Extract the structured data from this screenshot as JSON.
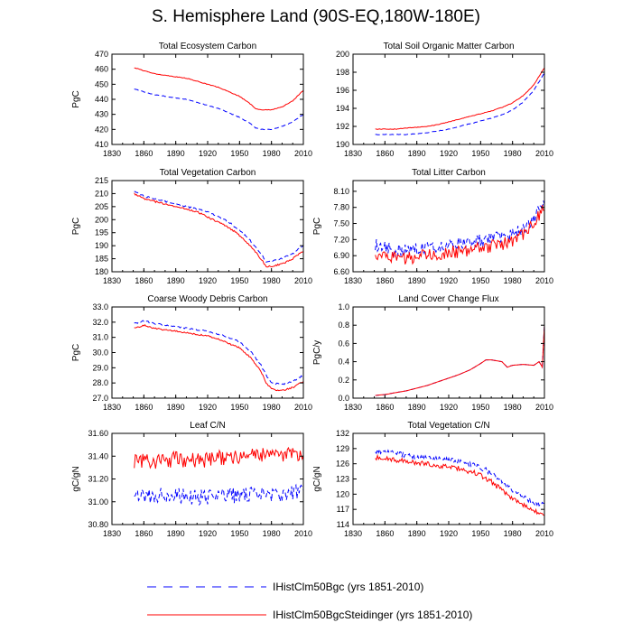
{
  "page": {
    "title": "S. Hemisphere Land (90S-EQ,180W-180E)"
  },
  "legend": {
    "entries": [
      {
        "label": "IHistClm50Bgc (yrs 1851-2010)",
        "color": "#0000ff",
        "dash": "dashed"
      },
      {
        "label": "IHistClm50BgcSteidinger (yrs 1851-2010)",
        "color": "#ff0000",
        "dash": "solid"
      }
    ]
  },
  "colors": {
    "series_a": "#0000ff",
    "series_b": "#ff0000"
  },
  "chart_data": [
    {
      "type": "line",
      "title": "Total Ecosystem Carbon",
      "xlabel": "",
      "ylabel": "PgC",
      "xlim": [
        1830,
        2010
      ],
      "ylim": [
        410,
        470
      ],
      "xticks": [
        "1830",
        "1860",
        "1890",
        "1920",
        "1950",
        "1980",
        "2010"
      ],
      "yticks": [
        "410",
        "420",
        "430",
        "440",
        "450",
        "460",
        "470"
      ],
      "x": [
        1851,
        1860,
        1870,
        1880,
        1890,
        1900,
        1910,
        1920,
        1930,
        1940,
        1950,
        1960,
        1965,
        1970,
        1975,
        1980,
        1990,
        2000,
        2010
      ],
      "series": [
        {
          "name": "IHistClm50Bgc",
          "noise": 0.2,
          "values": [
            447,
            445,
            443,
            442,
            441,
            440,
            438,
            436,
            434,
            431,
            428,
            424,
            421,
            420,
            420,
            420,
            422,
            425,
            430
          ]
        },
        {
          "name": "IHistClm50BgcSteidinger",
          "noise": 0.2,
          "values": [
            461,
            459,
            457,
            456,
            455,
            454,
            452,
            450,
            448,
            445,
            442,
            437,
            434,
            433,
            433,
            433,
            435,
            439,
            446
          ]
        }
      ]
    },
    {
      "type": "line",
      "title": "Total Soil Organic Matter Carbon",
      "xlabel": "",
      "ylabel": "",
      "xlim": [
        1830,
        2010
      ],
      "ylim": [
        190,
        200
      ],
      "xticks": [
        "1830",
        "1860",
        "1890",
        "1920",
        "1950",
        "1980",
        "2010"
      ],
      "yticks": [
        "190",
        "192",
        "194",
        "196",
        "198",
        "200"
      ],
      "x": [
        1851,
        1860,
        1870,
        1880,
        1890,
        1900,
        1910,
        1920,
        1930,
        1940,
        1950,
        1960,
        1970,
        1980,
        1990,
        2000,
        2010
      ],
      "series": [
        {
          "name": "IHistClm50Bgc",
          "noise": 0.03,
          "values": [
            191.1,
            191.1,
            191.1,
            191.1,
            191.2,
            191.3,
            191.5,
            191.7,
            192.0,
            192.3,
            192.6,
            192.9,
            193.3,
            193.8,
            194.7,
            196.0,
            197.9
          ]
        },
        {
          "name": "IHistClm50BgcSteidinger",
          "noise": 0.03,
          "values": [
            191.7,
            191.7,
            191.7,
            191.8,
            191.9,
            192.0,
            192.2,
            192.5,
            192.8,
            193.1,
            193.4,
            193.7,
            194.1,
            194.6,
            195.4,
            196.6,
            198.5
          ]
        }
      ]
    },
    {
      "type": "line",
      "title": "Total Vegetation Carbon",
      "xlabel": "",
      "ylabel": "PgC",
      "xlim": [
        1830,
        2010
      ],
      "ylim": [
        180,
        215
      ],
      "xticks": [
        "1830",
        "1860",
        "1890",
        "1920",
        "1950",
        "1980",
        "2010"
      ],
      "yticks": [
        "180",
        "185",
        "190",
        "195",
        "200",
        "205",
        "210",
        "215"
      ],
      "x": [
        1851,
        1860,
        1870,
        1880,
        1890,
        1900,
        1910,
        1920,
        1930,
        1940,
        1950,
        1960,
        1970,
        1975,
        1980,
        1990,
        2000,
        2010
      ],
      "series": [
        {
          "name": "IHistClm50Bgc",
          "noise": 0.35,
          "values": [
            211,
            209,
            208,
            207,
            206,
            205,
            204,
            203,
            201,
            199,
            196,
            192,
            187,
            184,
            184,
            185,
            187,
            190
          ]
        },
        {
          "name": "IHistClm50BgcSteidinger",
          "noise": 0.35,
          "values": [
            210,
            208,
            207,
            206,
            205,
            204,
            203,
            201,
            199,
            197,
            194,
            190,
            185,
            182,
            182,
            183,
            185,
            188
          ]
        }
      ]
    },
    {
      "type": "line",
      "title": "Total Litter Carbon",
      "xlabel": "",
      "ylabel": "PgC",
      "xlim": [
        1830,
        2010
      ],
      "ylim": [
        6.6,
        8.3
      ],
      "xticks": [
        "1830",
        "1860",
        "1890",
        "1920",
        "1950",
        "1980",
        "2010"
      ],
      "yticks": [
        "6.60",
        "6.90",
        "7.20",
        "7.50",
        "7.80",
        "8.10"
      ],
      "x": [
        1851,
        1860,
        1870,
        1880,
        1890,
        1900,
        1910,
        1920,
        1930,
        1940,
        1950,
        1960,
        1970,
        1980,
        1990,
        2000,
        2010
      ],
      "series": [
        {
          "name": "IHistClm50Bgc",
          "noise": 0.12,
          "values": [
            7.1,
            7.05,
            7.0,
            7.0,
            7.02,
            7.05,
            7.08,
            7.1,
            7.12,
            7.15,
            7.18,
            7.2,
            7.25,
            7.3,
            7.4,
            7.6,
            7.9
          ]
        },
        {
          "name": "IHistClm50BgcSteidinger",
          "noise": 0.12,
          "values": [
            6.95,
            6.9,
            6.85,
            6.85,
            6.88,
            6.9,
            6.93,
            6.96,
            6.98,
            7.0,
            7.04,
            7.08,
            7.12,
            7.18,
            7.3,
            7.5,
            7.8
          ]
        }
      ]
    },
    {
      "type": "line",
      "title": "Coarse Woody Debris Carbon",
      "xlabel": "",
      "ylabel": "PgC",
      "xlim": [
        1830,
        2010
      ],
      "ylim": [
        27,
        33
      ],
      "xticks": [
        "1830",
        "1860",
        "1890",
        "1920",
        "1950",
        "1980",
        "2010"
      ],
      "yticks": [
        "27.0",
        "28.0",
        "29.0",
        "30.0",
        "31.0",
        "32.0",
        "33.0"
      ],
      "x": [
        1851,
        1860,
        1870,
        1880,
        1890,
        1900,
        1910,
        1920,
        1930,
        1940,
        1950,
        1960,
        1970,
        1975,
        1980,
        1990,
        2000,
        2010
      ],
      "series": [
        {
          "name": "IHistClm50Bgc",
          "noise": 0.05,
          "values": [
            31.9,
            32.1,
            31.9,
            31.8,
            31.7,
            31.6,
            31.5,
            31.4,
            31.2,
            31.0,
            30.7,
            30.1,
            29.2,
            28.5,
            28.0,
            27.9,
            28.1,
            28.5
          ]
        },
        {
          "name": "IHistClm50BgcSteidinger",
          "noise": 0.05,
          "values": [
            31.6,
            31.8,
            31.6,
            31.5,
            31.4,
            31.3,
            31.2,
            31.1,
            30.9,
            30.6,
            30.3,
            29.7,
            28.8,
            28.0,
            27.6,
            27.5,
            27.7,
            28.1
          ]
        }
      ]
    },
    {
      "type": "line",
      "title": "Land Cover Change Flux",
      "xlabel": "",
      "ylabel": "PgC/y",
      "xlim": [
        1830,
        2010
      ],
      "ylim": [
        0,
        1
      ],
      "xticks": [
        "1830",
        "1860",
        "1890",
        "1920",
        "1950",
        "1980",
        "2010"
      ],
      "yticks": [
        "0.0",
        "0.2",
        "0.4",
        "0.6",
        "0.8",
        "1.0"
      ],
      "x": [
        1851,
        1860,
        1870,
        1880,
        1890,
        1900,
        1910,
        1920,
        1930,
        1940,
        1950,
        1955,
        1960,
        1965,
        1970,
        1975,
        1980,
        1990,
        2000,
        2005,
        2008,
        2010
      ],
      "series": [
        {
          "name": "IHistClm50Bgc",
          "noise": 0.0,
          "values": [
            0.03,
            0.04,
            0.06,
            0.08,
            0.11,
            0.14,
            0.18,
            0.22,
            0.26,
            0.31,
            0.38,
            0.42,
            0.42,
            0.41,
            0.4,
            0.34,
            0.36,
            0.37,
            0.36,
            0.4,
            0.34,
            0.8
          ]
        },
        {
          "name": "IHistClm50BgcSteidinger",
          "noise": 0.0,
          "values": [
            0.03,
            0.04,
            0.06,
            0.08,
            0.11,
            0.14,
            0.18,
            0.22,
            0.26,
            0.31,
            0.38,
            0.42,
            0.42,
            0.41,
            0.4,
            0.34,
            0.36,
            0.37,
            0.36,
            0.4,
            0.34,
            0.8
          ]
        }
      ]
    },
    {
      "type": "line",
      "title": "Leaf C/N",
      "xlabel": "",
      "ylabel": "gC/gN",
      "xlim": [
        1830,
        2010
      ],
      "ylim": [
        30.8,
        31.6
      ],
      "xticks": [
        "1830",
        "1860",
        "1890",
        "1920",
        "1950",
        "1980",
        "2010"
      ],
      "yticks": [
        "30.80",
        "31.00",
        "31.20",
        "31.40",
        "31.60"
      ],
      "x": [
        1851,
        1870,
        1890,
        1910,
        1930,
        1950,
        1970,
        1990,
        2010
      ],
      "series": [
        {
          "name": "IHistClm50Bgc",
          "noise": 0.07,
          "values": [
            31.05,
            31.05,
            31.06,
            31.04,
            31.05,
            31.06,
            31.07,
            31.07,
            31.08
          ]
        },
        {
          "name": "IHistClm50BgcSteidinger",
          "noise": 0.07,
          "values": [
            31.35,
            31.36,
            31.37,
            31.36,
            31.38,
            31.39,
            31.4,
            31.41,
            31.43
          ]
        }
      ]
    },
    {
      "type": "line",
      "title": "Total Vegetation C/N",
      "xlabel": "",
      "ylabel": "gC/gN",
      "xlim": [
        1830,
        2010
      ],
      "ylim": [
        114,
        132
      ],
      "xticks": [
        "1830",
        "1860",
        "1890",
        "1920",
        "1950",
        "1980",
        "2010"
      ],
      "yticks": [
        "114",
        "117",
        "120",
        "123",
        "126",
        "129",
        "132"
      ],
      "x": [
        1851,
        1860,
        1870,
        1880,
        1890,
        1900,
        1910,
        1920,
        1930,
        1940,
        1950,
        1960,
        1970,
        1980,
        1990,
        2000,
        2010
      ],
      "series": [
        {
          "name": "IHistClm50Bgc",
          "noise": 0.5,
          "values": [
            128.5,
            128.3,
            128.0,
            127.7,
            127.4,
            127.1,
            126.9,
            126.7,
            126.4,
            126.0,
            125.3,
            124.2,
            122.5,
            120.8,
            119.5,
            118.4,
            117.8
          ]
        },
        {
          "name": "IHistClm50BgcSteidinger",
          "noise": 0.5,
          "values": [
            127.3,
            127.1,
            126.8,
            126.5,
            126.2,
            125.9,
            125.7,
            125.4,
            125.0,
            124.5,
            123.7,
            122.5,
            120.7,
            119.0,
            117.8,
            116.7,
            116.0
          ]
        }
      ]
    }
  ]
}
